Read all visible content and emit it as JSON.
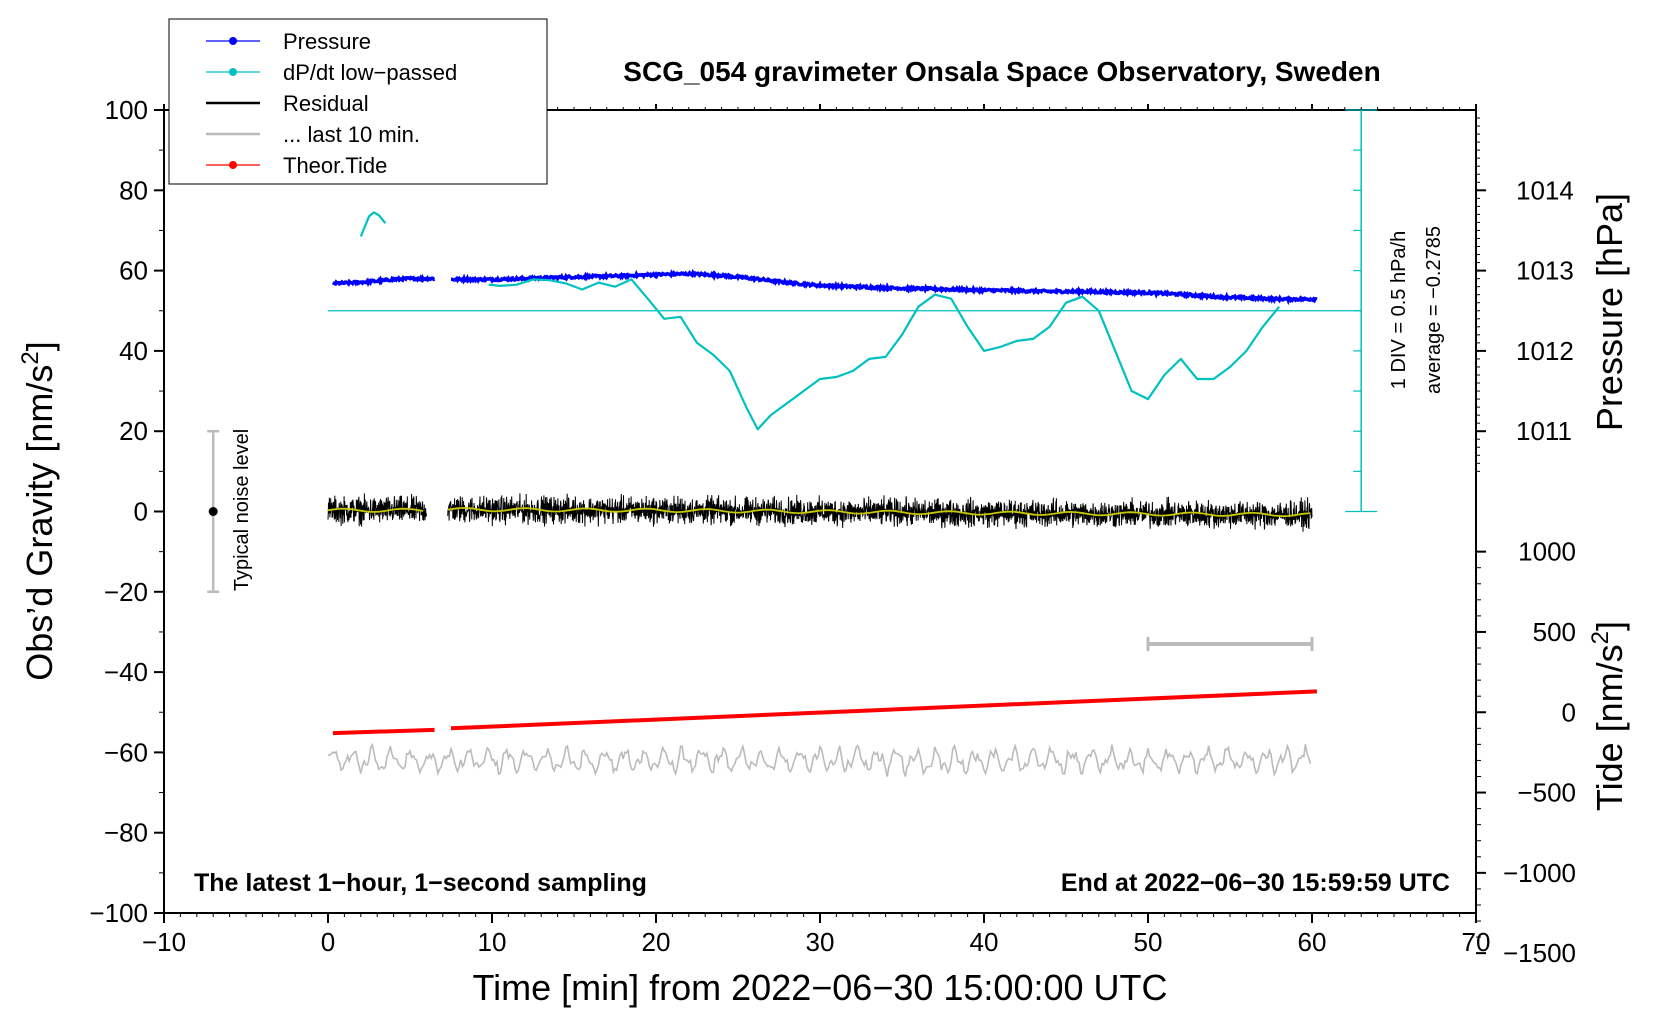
{
  "chart_data": {
    "type": "line",
    "title": "SCG_054 gravimeter Onsala Space Observatory, Sweden",
    "xlabel": "Time [min] from 2022−06−30 15:00:00 UTC",
    "xlim": [
      -10,
      70
    ],
    "xticks": [
      -10,
      0,
      10,
      20,
      30,
      40,
      50,
      60,
      70
    ],
    "xtick_labels": [
      "−10",
      "0",
      "10",
      "20",
      "30",
      "40",
      "50",
      "60",
      "70"
    ],
    "left_axis": {
      "label_main": "Obs’d Gravity [nm/s",
      "label_sup": "2",
      "label_end": "]",
      "ylim": [
        -100,
        100
      ],
      "ticks": [
        -100,
        -80,
        -60,
        -40,
        -20,
        0,
        20,
        40,
        60,
        80,
        100
      ],
      "tick_labels": [
        "−100",
        "−80",
        "−60",
        "−40",
        "−20",
        "0",
        "20",
        "40",
        "60",
        "80",
        "100"
      ]
    },
    "pressure_axis": {
      "label": "Pressure [hPa]",
      "ticks": [
        1011,
        1012,
        1013,
        1014
      ],
      "tick_labels": [
        "1011",
        "1012",
        "1013",
        "1014"
      ],
      "gravity_at_1011": 20,
      "gravity_per_hPa": 20
    },
    "tide_axis": {
      "label_main": "Tide [nm/s",
      "label_sup": "2",
      "label_end": "]",
      "ticks": [
        -1500,
        -1000,
        -500,
        0,
        500,
        1000
      ],
      "tick_labels": [
        "−1500",
        "−1000",
        "−500",
        "0",
        "500",
        "1000"
      ],
      "gravity_at_0": -50,
      "gravity_per_unit": 0.04
    },
    "dpdt_scale": {
      "label_div": "1 DIV = 0.5 hPa/h",
      "label_avg": "average = −0.2785",
      "x": 63,
      "ymin": 0,
      "ymax": 100,
      "div": 10,
      "average_level": 50
    },
    "series": [
      {
        "name": "Pressure",
        "color": "#0000ff",
        "segments": [
          {
            "x": [
              0.3,
              1,
              2,
              3,
              4,
              5,
              6,
              6.5
            ],
            "y": [
              56.8,
              56.9,
              57.1,
              57.4,
              57.8,
              58.0,
              58.0,
              58.0
            ]
          },
          {
            "x": [
              7.5,
              10,
              12,
              14,
              16,
              18,
              20,
              22,
              24,
              26,
              28,
              30,
              32,
              34,
              36,
              38,
              40,
              42,
              44,
              46,
              48,
              50,
              52,
              54,
              56,
              58,
              60.3
            ],
            "y": [
              57.8,
              57.8,
              58.0,
              58.3,
              58.5,
              58.7,
              59.0,
              59.2,
              58.8,
              58.0,
              57.0,
              56.3,
              56.0,
              55.7,
              55.5,
              55.3,
              55.1,
              55.0,
              54.8,
              54.8,
              54.6,
              54.5,
              54.1,
              53.5,
              53.2,
              52.9,
              52.9
            ]
          }
        ]
      },
      {
        "name": "dP/dt low−passed",
        "color": "#00c0c0",
        "segments": [
          {
            "x": [
              2,
              2.5,
              2.8,
              3.1,
              3.5
            ],
            "y": [
              68.5,
              73.5,
              74.5,
              73.8,
              71.8
            ]
          },
          {
            "x": [
              9.8,
              10.5,
              11.5,
              12.5,
              13.5,
              14.5,
              15.5,
              16.5,
              17.5,
              18.5,
              19.5,
              20.5,
              21.5,
              22.5,
              23.5,
              24.5,
              25.5,
              26.2,
              27,
              28,
              29,
              30,
              31,
              32,
              33,
              34,
              35,
              36,
              37,
              38,
              39,
              40,
              41,
              42,
              43,
              44,
              45,
              46,
              47,
              48,
              49,
              50,
              51,
              52,
              53,
              54,
              55,
              56,
              57,
              58
            ],
            "y": [
              56.5,
              56.2,
              56.5,
              57.8,
              57.6,
              56.8,
              55.3,
              57.0,
              56.0,
              57.8,
              53.0,
              48.0,
              48.5,
              42.0,
              39.0,
              35.0,
              26.0,
              20.5,
              24.0,
              27.0,
              30.0,
              33.0,
              33.5,
              35.0,
              38.0,
              38.5,
              44.0,
              51.0,
              54.0,
              53.0,
              46.0,
              40.0,
              41.0,
              42.5,
              43.0,
              46.0,
              52.0,
              53.5,
              50.0,
              40.0,
              30.0,
              28.0,
              34.0,
              38.0,
              33.0,
              33.0,
              36.0,
              40.0,
              46.0,
              51.0
            ]
          }
        ]
      },
      {
        "name": "Residual",
        "color": "#000000",
        "noise_amplitude": 2.5,
        "segments": [
          {
            "x": [
              0,
              6
            ],
            "y": [
              0.3,
              0.3
            ]
          },
          {
            "x": [
              7.3,
              20,
              40,
              60
            ],
            "y": [
              0.5,
              0.3,
              -0.4,
              -0.8
            ]
          }
        ]
      },
      {
        "name": "... last 10 min.",
        "color": "#bbbbbb",
        "segments": [
          {
            "x": [
              50,
              60
            ],
            "y": [
              -33,
              -33
            ]
          }
        ]
      },
      {
        "name": "Theor.Tide",
        "color": "#ff0000",
        "segments": [
          {
            "x": [
              0.3,
              6.5
            ],
            "y": [
              -55.2,
              -54.4
            ]
          },
          {
            "x": [
              7.5,
              60.3
            ],
            "y": [
              -54.0,
              -44.8
            ]
          }
        ]
      }
    ],
    "residual_smoothed_color": "#c8c800",
    "grey_trace": {
      "center": -62,
      "amplitude": 3.5,
      "x_start": 0,
      "x_end": 60
    },
    "noise_bar": {
      "x": -7,
      "ymin": -20,
      "ymax": 20,
      "label": "Typical noise level"
    },
    "legend": {
      "position": "top-left",
      "items": [
        {
          "label": "Pressure",
          "color": "#0000ff",
          "marker": true
        },
        {
          "label": "dP/dt low−passed",
          "color": "#00c0c0",
          "marker": true
        },
        {
          "label": "Residual",
          "color": "#000000",
          "marker": false
        },
        {
          "label": "... last 10 min.",
          "color": "#bbbbbb",
          "marker": false
        },
        {
          "label": "Theor.Tide",
          "color": "#ff0000",
          "marker": true
        }
      ]
    },
    "annotations": {
      "bottom_left": "The latest 1−hour, 1−second sampling",
      "bottom_right": "End at 2022−06−30 15:59:59 UTC"
    }
  }
}
